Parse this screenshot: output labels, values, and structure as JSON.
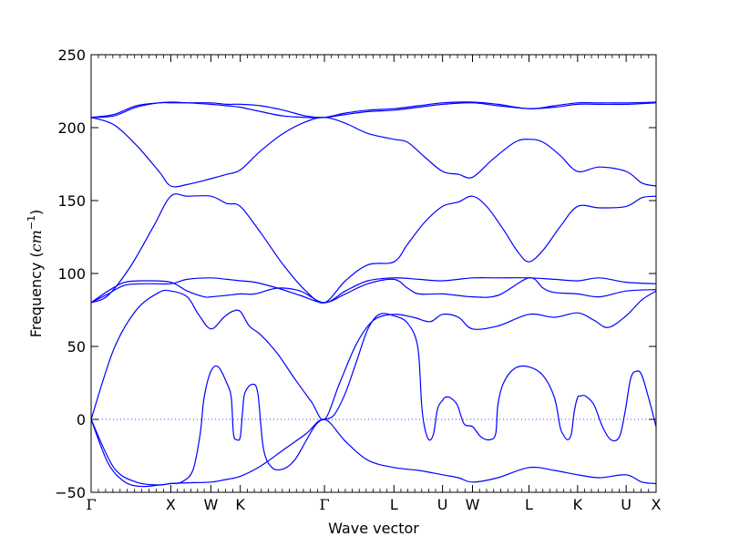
{
  "chart_data": {
    "type": "line",
    "title": "",
    "xlabel": "Wave vector",
    "ylabel_prefix": "Frequency (",
    "ylabel_unit_base": "cm",
    "ylabel_unit_exp": "−1",
    "ylabel_suffix": ")",
    "ylim": [
      -50,
      250
    ],
    "xlim": [
      0,
      1
    ],
    "grid": false,
    "yticks": [
      -50,
      0,
      50,
      100,
      150,
      200,
      250
    ],
    "high_symmetry_points": [
      {
        "label": "Γ",
        "x": 0.0
      },
      {
        "label": "X",
        "x": 0.141
      },
      {
        "label": "W",
        "x": 0.212
      },
      {
        "label": "K",
        "x": 0.264
      },
      {
        "label": "Γ",
        "x": 0.413
      },
      {
        "label": "L",
        "x": 0.536
      },
      {
        "label": "U",
        "x": 0.622
      },
      {
        "label": "W",
        "x": 0.675
      },
      {
        "label": "L",
        "x": 0.775
      },
      {
        "label": "K",
        "x": 0.861
      },
      {
        "label": "U",
        "x": 0.947
      },
      {
        "label": "X",
        "x": 1.0
      }
    ],
    "zero_line": 0,
    "line_color": "#0000ff",
    "series": [
      {
        "x": [
          0,
          0.04,
          0.08,
          0.12,
          0.141,
          0.17,
          0.212,
          0.235,
          0.264,
          0.3,
          0.34,
          0.38,
          0.413,
          0.45,
          0.49,
          0.536,
          0.58,
          0.622,
          0.65,
          0.675,
          0.72,
          0.775,
          0.82,
          0.861,
          0.9,
          0.947,
          0.975,
          1.0
        ],
        "values": [
          0,
          -33,
          -43,
          -45,
          -44,
          -43.5,
          -43,
          -41.5,
          -39,
          -32,
          -21,
          -10,
          0,
          -15,
          -28,
          -33,
          -35,
          -38,
          -40,
          -43,
          -40,
          -33,
          -35,
          -38,
          -40,
          -38,
          -43,
          -44
        ]
      },
      {
        "x": [
          0,
          0.03,
          0.06,
          0.09,
          0.12,
          0.141,
          0.16,
          0.18,
          0.193,
          0.2,
          0.212,
          0.225,
          0.24,
          0.248,
          0.252,
          0.258,
          0.264,
          0.268,
          0.272,
          0.285,
          0.295,
          0.305,
          0.32,
          0.34,
          0.36,
          0.38,
          0.395,
          0.405,
          0.413,
          0.43,
          0.45,
          0.47,
          0.49,
          0.51,
          0.536,
          0.56,
          0.578,
          0.585,
          0.59,
          0.598,
          0.606,
          0.612,
          0.616,
          0.622,
          0.626,
          0.635,
          0.648,
          0.66,
          0.675,
          0.69,
          0.705,
          0.716,
          0.72,
          0.73,
          0.75,
          0.775,
          0.8,
          0.82,
          0.83,
          0.835,
          0.843,
          0.85,
          0.855,
          0.861,
          0.866,
          0.875,
          0.89,
          0.905,
          0.92,
          0.935,
          0.945,
          0.955,
          0.965,
          0.975,
          0.99,
          1.0
        ],
        "values": [
          0,
          -30,
          -43,
          -46,
          -45,
          -44,
          -43,
          -35,
          -10,
          15,
          33,
          36,
          25,
          15,
          -10,
          -14,
          -12,
          5,
          18,
          24,
          18,
          -20,
          -33,
          -34,
          -28,
          -15,
          -5,
          -1,
          0,
          3,
          18,
          40,
          62,
          72,
          71,
          66,
          50,
          10,
          -5,
          -14,
          -10,
          5,
          10,
          13,
          15,
          15,
          10,
          -3,
          -5,
          -12,
          -14,
          -10,
          10,
          25,
          35,
          36,
          30,
          15,
          -5,
          -10,
          -14,
          -10,
          5,
          15,
          16,
          16,
          10,
          -5,
          -14,
          -12,
          5,
          28,
          33,
          30,
          10,
          -5
        ]
      },
      {
        "x": [
          0,
          0.04,
          0.08,
          0.12,
          0.141,
          0.17,
          0.19,
          0.212,
          0.235,
          0.25,
          0.264,
          0.28,
          0.3,
          0.33,
          0.36,
          0.39,
          0.413,
          0.44,
          0.47,
          0.5,
          0.536,
          0.57,
          0.6,
          0.622,
          0.65,
          0.675,
          0.72,
          0.775,
          0.82,
          0.861,
          0.89,
          0.915,
          0.947,
          0.975,
          1.0
        ],
        "values": [
          0,
          48,
          75,
          87,
          88,
          84,
          72,
          62,
          70,
          74,
          74,
          64,
          58,
          45,
          28,
          12,
          0,
          25,
          52,
          68,
          72,
          70,
          67,
          72,
          70,
          62,
          64,
          72,
          70,
          73,
          68,
          63,
          71,
          82,
          88
        ]
      },
      {
        "x": [
          0,
          0.03,
          0.06,
          0.1,
          0.141,
          0.17,
          0.2,
          0.212,
          0.24,
          0.264,
          0.29,
          0.33,
          0.37,
          0.413,
          0.45,
          0.49,
          0.536,
          0.58,
          0.622,
          0.675,
          0.72,
          0.775,
          0.82,
          0.861,
          0.9,
          0.947,
          1.0
        ],
        "values": [
          80,
          88,
          94,
          95,
          94,
          88,
          84,
          84,
          85,
          86,
          86,
          90,
          88,
          80,
          88,
          95,
          97,
          96,
          95,
          97,
          97,
          97,
          96,
          95,
          97,
          94,
          93
        ]
      },
      {
        "x": [
          0,
          0.03,
          0.06,
          0.1,
          0.141,
          0.17,
          0.212,
          0.24,
          0.264,
          0.29,
          0.33,
          0.37,
          0.413,
          0.45,
          0.49,
          0.536,
          0.56,
          0.58,
          0.622,
          0.675,
          0.72,
          0.775,
          0.8,
          0.82,
          0.861,
          0.9,
          0.947,
          1.0
        ],
        "values": [
          80,
          86,
          92,
          93,
          93,
          96,
          97,
          96,
          95,
          94,
          90,
          85,
          80,
          86,
          93,
          96,
          90,
          86,
          86,
          84,
          85,
          97,
          90,
          87,
          86,
          84,
          88,
          89
        ]
      },
      {
        "x": [
          0,
          0.03,
          0.07,
          0.11,
          0.141,
          0.17,
          0.212,
          0.24,
          0.264,
          0.3,
          0.34,
          0.38,
          0.413,
          0.45,
          0.49,
          0.536,
          0.56,
          0.59,
          0.622,
          0.65,
          0.675,
          0.7,
          0.73,
          0.755,
          0.775,
          0.8,
          0.83,
          0.861,
          0.9,
          0.947,
          0.975,
          1.0
        ],
        "values": [
          80,
          85,
          105,
          132,
          153,
          153,
          153,
          148,
          146,
          128,
          106,
          88,
          80,
          95,
          106,
          108,
          120,
          135,
          146,
          149,
          153,
          146,
          130,
          115,
          108,
          116,
          132,
          146,
          145,
          146,
          152,
          153
        ]
      },
      {
        "x": [
          0,
          0.04,
          0.08,
          0.12,
          0.141,
          0.17,
          0.212,
          0.24,
          0.264,
          0.3,
          0.34,
          0.38,
          0.413,
          0.45,
          0.49,
          0.536,
          0.56,
          0.59,
          0.622,
          0.65,
          0.675,
          0.71,
          0.75,
          0.775,
          0.8,
          0.83,
          0.861,
          0.9,
          0.947,
          0.975,
          1.0
        ],
        "values": [
          207,
          202,
          188,
          170,
          160,
          161,
          165,
          168,
          171,
          184,
          196,
          204,
          207,
          203,
          196,
          192,
          190,
          180,
          170,
          168,
          166,
          178,
          190,
          192,
          190,
          181,
          170,
          173,
          170,
          162,
          160
        ]
      },
      {
        "x": [
          0,
          0.04,
          0.08,
          0.12,
          0.141,
          0.17,
          0.212,
          0.24,
          0.264,
          0.3,
          0.34,
          0.38,
          0.413,
          0.45,
          0.49,
          0.536,
          0.58,
          0.622,
          0.675,
          0.72,
          0.775,
          0.82,
          0.861,
          0.9,
          0.947,
          1.0
        ],
        "values": [
          207,
          208,
          214,
          217,
          217,
          217,
          217,
          216,
          216,
          215,
          212,
          208,
          207,
          209,
          211,
          212,
          214,
          216,
          217,
          215,
          213,
          214,
          216,
          216,
          216,
          217
        ]
      },
      {
        "x": [
          0,
          0.04,
          0.08,
          0.12,
          0.141,
          0.17,
          0.212,
          0.24,
          0.264,
          0.3,
          0.34,
          0.38,
          0.413,
          0.45,
          0.49,
          0.536,
          0.58,
          0.622,
          0.675,
          0.72,
          0.775,
          0.82,
          0.861,
          0.9,
          0.947,
          1.0
        ],
        "values": [
          207,
          209,
          215,
          217,
          217.5,
          217,
          216,
          215,
          214,
          211,
          208,
          207,
          207,
          210,
          212,
          213,
          215,
          217,
          217.5,
          216,
          213,
          215,
          217,
          217,
          217,
          217.5
        ]
      }
    ]
  }
}
